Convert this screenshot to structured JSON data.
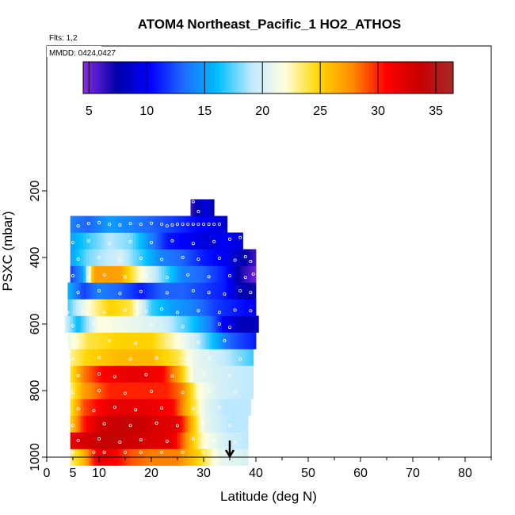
{
  "chart_data": {
    "type": "heatmap",
    "title": "ATOM4 Northeast_Pacific_1 HO2_ATHOS",
    "annotations": {
      "flights": "Flts: 1,2",
      "dates": "MMDD: 0424,0427"
    },
    "xlabel": "Latitude (deg N)",
    "ylabel": "PSXC (mbar)",
    "xlim": [
      0,
      85
    ],
    "ylim": [
      1000,
      100
    ],
    "x_ticks_major": [
      0,
      10,
      20,
      30,
      40,
      50,
      60,
      70,
      80
    ],
    "x_tick_labels": [
      "0",
      "5",
      "10",
      "20",
      "30",
      "40",
      "50",
      "60",
      "70",
      "80"
    ],
    "x_tick_label_values": [
      0,
      5,
      10,
      20,
      30,
      40,
      50,
      60,
      70,
      80
    ],
    "y_ticks": [
      200,
      400,
      600,
      800,
      1000
    ],
    "y_tick_labels": [
      "200",
      "400",
      "600",
      "800",
      "1000"
    ],
    "colorbar": {
      "range": [
        4.5,
        36.5
      ],
      "ticks": [
        5,
        10,
        15,
        20,
        25,
        30,
        35
      ],
      "tick_labels": [
        "5",
        "10",
        "15",
        "20",
        "25",
        "30",
        "35"
      ],
      "colors": [
        "#8a2be2",
        "#0000a8",
        "#0000ff",
        "#1e6cff",
        "#00bfff",
        "#bfe9ff",
        "#ffffe0",
        "#ffd700",
        "#ff8c00",
        "#ff0000",
        "#c80000",
        "#a52a2a"
      ]
    },
    "arrow_latitude": 35,
    "rows": [
      {
        "p": 950,
        "lat": [
          4.5,
          38.5
        ],
        "stops": [
          [
            4.5,
            23
          ],
          [
            7,
            26
          ],
          [
            10,
            32
          ],
          [
            13,
            31
          ],
          [
            16,
            29
          ],
          [
            20,
            28
          ],
          [
            25,
            28
          ],
          [
            29,
            25
          ],
          [
            33,
            21
          ],
          [
            38.5,
            20
          ]
        ]
      },
      {
        "p": 900,
        "lat": [
          4.5,
          38.5
        ],
        "stops": [
          [
            4.5,
            32
          ],
          [
            8,
            33
          ],
          [
            12,
            34
          ],
          [
            18,
            33
          ],
          [
            24,
            32
          ],
          [
            27,
            27
          ],
          [
            30,
            22
          ],
          [
            34,
            20
          ],
          [
            38.5,
            19
          ]
        ]
      },
      {
        "p": 850,
        "lat": [
          4.5,
          38.5
        ],
        "stops": [
          [
            4.5,
            25
          ],
          [
            7,
            30
          ],
          [
            10,
            33
          ],
          [
            15,
            34
          ],
          [
            20,
            33
          ],
          [
            25,
            32
          ],
          [
            27,
            28
          ],
          [
            30,
            21
          ],
          [
            35,
            19
          ],
          [
            38.5,
            19
          ]
        ]
      },
      {
        "p": 800,
        "lat": [
          4.5,
          39
        ],
        "stops": [
          [
            4.5,
            24
          ],
          [
            7,
            29
          ],
          [
            12,
            32
          ],
          [
            18,
            32
          ],
          [
            24,
            31
          ],
          [
            27,
            26
          ],
          [
            30,
            21
          ],
          [
            34,
            19
          ],
          [
            39,
            19
          ]
        ]
      },
      {
        "p": 750,
        "lat": [
          4.5,
          39.5
        ],
        "stops": [
          [
            4.5,
            23
          ],
          [
            7,
            27
          ],
          [
            12,
            30
          ],
          [
            18,
            30
          ],
          [
            23,
            30
          ],
          [
            26,
            28
          ],
          [
            29,
            22
          ],
          [
            33,
            20
          ],
          [
            39.5,
            19
          ]
        ]
      },
      {
        "p": 700,
        "lat": [
          4.5,
          39.5
        ],
        "stops": [
          [
            4.5,
            24
          ],
          [
            7,
            28
          ],
          [
            11,
            31
          ],
          [
            17,
            32
          ],
          [
            22,
            31
          ],
          [
            25,
            27
          ],
          [
            28,
            21
          ],
          [
            33,
            20
          ],
          [
            39.5,
            19
          ]
        ]
      },
      {
        "p": 650,
        "lat": [
          4.5,
          39.5
        ],
        "stops": [
          [
            4.5,
            23
          ],
          [
            8,
            25
          ],
          [
            14,
            26
          ],
          [
            20,
            26
          ],
          [
            25,
            24
          ],
          [
            28,
            21
          ],
          [
            32,
            20
          ],
          [
            37,
            18
          ],
          [
            39.5,
            17
          ]
        ]
      },
      {
        "p": 600,
        "lat": [
          4,
          40
        ],
        "stops": [
          [
            4,
            21
          ],
          [
            8,
            24
          ],
          [
            14,
            25
          ],
          [
            20,
            25
          ],
          [
            25,
            22
          ],
          [
            28,
            20
          ],
          [
            32,
            16
          ],
          [
            35,
            13
          ],
          [
            40,
            11
          ]
        ]
      },
      {
        "p": 550,
        "lat": [
          3.5,
          40.5
        ],
        "stops": [
          [
            3.5,
            20
          ],
          [
            6,
            16
          ],
          [
            10,
            22
          ],
          [
            16,
            21
          ],
          [
            22,
            20
          ],
          [
            27,
            17
          ],
          [
            31,
            14
          ],
          [
            34,
            10
          ],
          [
            37,
            8
          ],
          [
            40.5,
            8
          ]
        ]
      },
      {
        "p": 500,
        "lat": [
          4,
          40
        ],
        "stops": [
          [
            4,
            17
          ],
          [
            8,
            22
          ],
          [
            12,
            25
          ],
          [
            16,
            24
          ],
          [
            20,
            17
          ],
          [
            24,
            15
          ],
          [
            28,
            14
          ],
          [
            32,
            12
          ],
          [
            36,
            11
          ],
          [
            40,
            10
          ]
        ]
      },
      {
        "p": 450,
        "lat": [
          4,
          40
        ],
        "stops": [
          [
            4,
            16
          ],
          [
            7,
            12
          ],
          [
            10,
            14
          ],
          [
            14,
            13
          ],
          [
            18,
            11
          ],
          [
            22,
            13
          ],
          [
            26,
            13
          ],
          [
            30,
            12
          ],
          [
            34,
            11
          ],
          [
            37,
            8
          ],
          [
            40,
            7
          ]
        ]
      },
      {
        "p": 400,
        "lat": [
          4.5,
          40
        ],
        "stops": [
          [
            4.5,
            12
          ],
          [
            7,
            15
          ],
          [
            9,
            27
          ],
          [
            14,
            27
          ],
          [
            18,
            22
          ],
          [
            22,
            18
          ],
          [
            26,
            14
          ],
          [
            30,
            13
          ],
          [
            34,
            11
          ],
          [
            37,
            7
          ],
          [
            40,
            5
          ]
        ]
      },
      {
        "p": 350,
        "lat": [
          4.5,
          40
        ],
        "stops": [
          [
            4.5,
            15
          ],
          [
            8,
            18
          ],
          [
            14,
            20
          ],
          [
            18,
            17
          ],
          [
            22,
            14
          ],
          [
            26,
            13
          ],
          [
            30,
            11
          ],
          [
            34,
            10
          ],
          [
            37,
            8
          ],
          [
            40,
            6
          ]
        ]
      },
      {
        "p": 300,
        "lat": [
          4.5,
          37.5
        ],
        "stops": [
          [
            4.5,
            15
          ],
          [
            8,
            17
          ],
          [
            12,
            19
          ],
          [
            16,
            18
          ],
          [
            20,
            14
          ],
          [
            23,
            11
          ],
          [
            27,
            10
          ],
          [
            31,
            9
          ],
          [
            34,
            10
          ],
          [
            37.5,
            9
          ]
        ]
      },
      {
        "p": 250,
        "lat": [
          4.5,
          34.5
        ],
        "stops": [
          [
            4.5,
            14
          ],
          [
            8,
            13
          ],
          [
            12,
            15
          ],
          [
            16,
            14
          ],
          [
            20,
            13
          ],
          [
            24,
            12
          ],
          [
            27,
            11
          ],
          [
            30,
            10
          ],
          [
            34.5,
            9
          ]
        ]
      },
      {
        "p": 200,
        "lat": [
          27.5,
          32
        ],
        "stops": [
          [
            27.5,
            6
          ],
          [
            29,
            8
          ],
          [
            30.5,
            9
          ],
          [
            32,
            8
          ]
        ]
      }
    ],
    "observation_points": [
      [
        5,
        985
      ],
      [
        9,
        985
      ],
      [
        11,
        985
      ],
      [
        15,
        985
      ],
      [
        18,
        985
      ],
      [
        22,
        985
      ],
      [
        26,
        985
      ],
      [
        30,
        985
      ],
      [
        34,
        985
      ],
      [
        6,
        950
      ],
      [
        10,
        945
      ],
      [
        14,
        955
      ],
      [
        18,
        948
      ],
      [
        23,
        952
      ],
      [
        28,
        945
      ],
      [
        32,
        950
      ],
      [
        36,
        955
      ],
      [
        5,
        905
      ],
      [
        11,
        900
      ],
      [
        16,
        905
      ],
      [
        21,
        898
      ],
      [
        25,
        905
      ],
      [
        30,
        900
      ],
      [
        35,
        905
      ],
      [
        6,
        855
      ],
      [
        9,
        860
      ],
      [
        13,
        850
      ],
      [
        17,
        858
      ],
      [
        22,
        852
      ],
      [
        28,
        855
      ],
      [
        33,
        850
      ],
      [
        5,
        805
      ],
      [
        10,
        800
      ],
      [
        15,
        808
      ],
      [
        20,
        802
      ],
      [
        26,
        805
      ],
      [
        31,
        800
      ],
      [
        36,
        806
      ],
      [
        6,
        755
      ],
      [
        10,
        750
      ],
      [
        13,
        758
      ],
      [
        19,
        752
      ],
      [
        24,
        756
      ],
      [
        30,
        750
      ],
      [
        35,
        755
      ],
      [
        5,
        705
      ],
      [
        10,
        700
      ],
      [
        16,
        705
      ],
      [
        21,
        702
      ],
      [
        27,
        708
      ],
      [
        31,
        703
      ],
      [
        37,
        705
      ],
      [
        6,
        655
      ],
      [
        12,
        650
      ],
      [
        17,
        658
      ],
      [
        23,
        652
      ],
      [
        29,
        655
      ],
      [
        34,
        650
      ],
      [
        5,
        605
      ],
      [
        9,
        600
      ],
      [
        14,
        605
      ],
      [
        20,
        602
      ],
      [
        26,
        608
      ],
      [
        33,
        600
      ],
      [
        35,
        610
      ],
      [
        4,
        565
      ],
      [
        7,
        560
      ],
      [
        11,
        565
      ],
      [
        15,
        558
      ],
      [
        19,
        562
      ],
      [
        22,
        555
      ],
      [
        25,
        565
      ],
      [
        29,
        560
      ],
      [
        33,
        565
      ],
      [
        36,
        558
      ],
      [
        39,
        560
      ],
      [
        6,
        505
      ],
      [
        10,
        500
      ],
      [
        14,
        508
      ],
      [
        18,
        502
      ],
      [
        23,
        506
      ],
      [
        28,
        500
      ],
      [
        31,
        505
      ],
      [
        34,
        510
      ],
      [
        37,
        500
      ],
      [
        39,
        505
      ],
      [
        5,
        455
      ],
      [
        8,
        460
      ],
      [
        11,
        452
      ],
      [
        15,
        458
      ],
      [
        19,
        455
      ],
      [
        23,
        460
      ],
      [
        27,
        452
      ],
      [
        31,
        458
      ],
      [
        35,
        455
      ],
      [
        38,
        460
      ],
      [
        39.5,
        450
      ],
      [
        6,
        405
      ],
      [
        10,
        400
      ],
      [
        14,
        408
      ],
      [
        18,
        402
      ],
      [
        22,
        406
      ],
      [
        26,
        400
      ],
      [
        29,
        405
      ],
      [
        33,
        402
      ],
      [
        36,
        408
      ],
      [
        38,
        398
      ],
      [
        39,
        412
      ],
      [
        5,
        355
      ],
      [
        8,
        350
      ],
      [
        12,
        358
      ],
      [
        16,
        352
      ],
      [
        20,
        355
      ],
      [
        24,
        350
      ],
      [
        28,
        358
      ],
      [
        32,
        352
      ],
      [
        35,
        345
      ],
      [
        37,
        340
      ],
      [
        38.5,
        335
      ],
      [
        39.5,
        330
      ],
      [
        6,
        305
      ],
      [
        8,
        298
      ],
      [
        10,
        295
      ],
      [
        12,
        300
      ],
      [
        14,
        302
      ],
      [
        16,
        298
      ],
      [
        18,
        300
      ],
      [
        20,
        297
      ],
      [
        22,
        300
      ],
      [
        23,
        305
      ],
      [
        24,
        302
      ],
      [
        25,
        300
      ],
      [
        26,
        300
      ],
      [
        27,
        300
      ],
      [
        28,
        300
      ],
      [
        29,
        300
      ],
      [
        30,
        300
      ],
      [
        31,
        300
      ],
      [
        32,
        300
      ],
      [
        33,
        300
      ],
      [
        5,
        265
      ],
      [
        7,
        270
      ],
      [
        10,
        268
      ],
      [
        14,
        262
      ],
      [
        17,
        270
      ],
      [
        21,
        265
      ],
      [
        24,
        260
      ],
      [
        27,
        265
      ],
      [
        29,
        262
      ],
      [
        5,
        232
      ],
      [
        9,
        230
      ],
      [
        11,
        228
      ],
      [
        13,
        232
      ],
      [
        15,
        229
      ],
      [
        17,
        232
      ],
      [
        20,
        230
      ],
      [
        25,
        230
      ],
      [
        27,
        228
      ],
      [
        28,
        232
      ],
      [
        28,
        200
      ],
      [
        28.7,
        200
      ],
      [
        29.4,
        200
      ],
      [
        30.1,
        200
      ],
      [
        30.8,
        200
      ],
      [
        31.5,
        200
      ]
    ]
  }
}
